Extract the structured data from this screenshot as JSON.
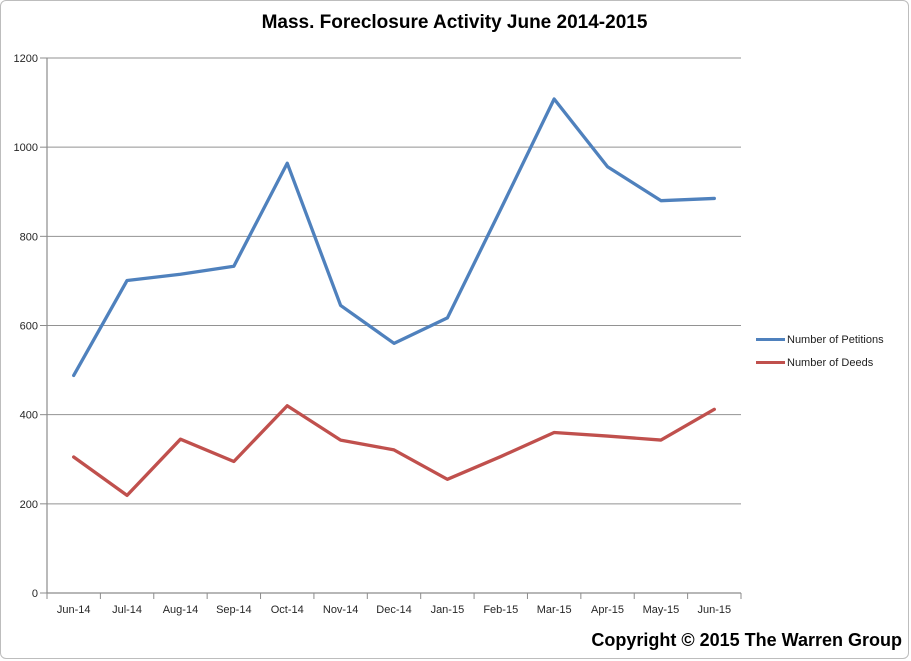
{
  "chart": {
    "title": "Mass. Foreclosure Activity June 2014-2015",
    "copyright": "Copyright © 2015 The Warren Group"
  },
  "chart_data": {
    "type": "line",
    "title": "Mass. Foreclosure Activity June 2014-2015",
    "categories": [
      "Jun-14",
      "Jul-14",
      "Aug-14",
      "Sep-14",
      "Oct-14",
      "Nov-14",
      "Dec-14",
      "Jan-15",
      "Feb-15",
      "Mar-15",
      "Apr-15",
      "May-15",
      "Jun-15"
    ],
    "series": [
      {
        "name": "Number of Petitions",
        "color": "#4F81BD",
        "values": [
          488,
          701,
          715,
          733,
          964,
          645,
          560,
          617,
          861,
          1108,
          956,
          880,
          885
        ]
      },
      {
        "name": "Number of Deeds",
        "color": "#C0504D",
        "values": [
          305,
          219,
          345,
          295,
          420,
          343,
          321,
          255,
          306,
          360,
          352,
          343,
          412
        ]
      }
    ],
    "ylim": [
      0,
      1200
    ],
    "ytick_interval": 200,
    "yticks": [
      "0",
      "200",
      "400",
      "600",
      "800",
      "1000",
      "1200"
    ],
    "grid": "horizontal",
    "legend_position": "right",
    "axis_color": "#8C8C8C",
    "gridline_color": "#929292",
    "label_color": "#262626"
  }
}
